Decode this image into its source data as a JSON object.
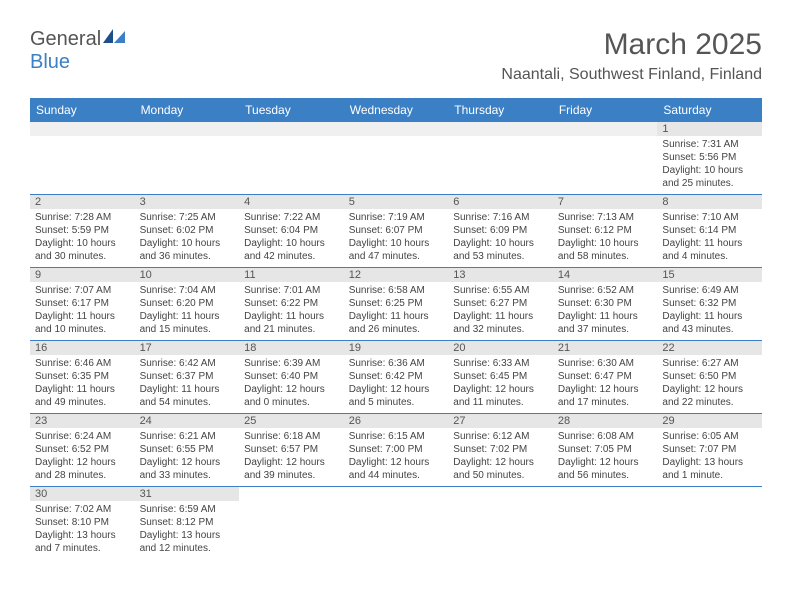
{
  "brand": {
    "name_pt1": "General",
    "name_pt2": "Blue"
  },
  "title": "March 2025",
  "location": "Naantali, Southwest Finland, Finland",
  "colors": {
    "header_bar": "#3b7fc4",
    "daynum_bg": "#e6e6e6",
    "empty_bg": "#f0f0f0",
    "text": "#444444",
    "title_text": "#555555",
    "row_border": "#3b7fc4",
    "white": "#ffffff"
  },
  "typography": {
    "body_pt": 10,
    "daynum_pt": 11,
    "header_pt": 12,
    "title_pt": 30,
    "location_pt": 16
  },
  "days": [
    "Sunday",
    "Monday",
    "Tuesday",
    "Wednesday",
    "Thursday",
    "Friday",
    "Saturday"
  ],
  "weeks": [
    [
      {
        "empty": true
      },
      {
        "empty": true
      },
      {
        "empty": true
      },
      {
        "empty": true
      },
      {
        "empty": true
      },
      {
        "empty": true
      },
      {
        "n": "1",
        "sr": "Sunrise: 7:31 AM",
        "ss": "Sunset: 5:56 PM",
        "dl": "Daylight: 10 hours and 25 minutes."
      }
    ],
    [
      {
        "n": "2",
        "sr": "Sunrise: 7:28 AM",
        "ss": "Sunset: 5:59 PM",
        "dl": "Daylight: 10 hours and 30 minutes."
      },
      {
        "n": "3",
        "sr": "Sunrise: 7:25 AM",
        "ss": "Sunset: 6:02 PM",
        "dl": "Daylight: 10 hours and 36 minutes."
      },
      {
        "n": "4",
        "sr": "Sunrise: 7:22 AM",
        "ss": "Sunset: 6:04 PM",
        "dl": "Daylight: 10 hours and 42 minutes."
      },
      {
        "n": "5",
        "sr": "Sunrise: 7:19 AM",
        "ss": "Sunset: 6:07 PM",
        "dl": "Daylight: 10 hours and 47 minutes."
      },
      {
        "n": "6",
        "sr": "Sunrise: 7:16 AM",
        "ss": "Sunset: 6:09 PM",
        "dl": "Daylight: 10 hours and 53 minutes."
      },
      {
        "n": "7",
        "sr": "Sunrise: 7:13 AM",
        "ss": "Sunset: 6:12 PM",
        "dl": "Daylight: 10 hours and 58 minutes."
      },
      {
        "n": "8",
        "sr": "Sunrise: 7:10 AM",
        "ss": "Sunset: 6:14 PM",
        "dl": "Daylight: 11 hours and 4 minutes."
      }
    ],
    [
      {
        "n": "9",
        "sr": "Sunrise: 7:07 AM",
        "ss": "Sunset: 6:17 PM",
        "dl": "Daylight: 11 hours and 10 minutes."
      },
      {
        "n": "10",
        "sr": "Sunrise: 7:04 AM",
        "ss": "Sunset: 6:20 PM",
        "dl": "Daylight: 11 hours and 15 minutes."
      },
      {
        "n": "11",
        "sr": "Sunrise: 7:01 AM",
        "ss": "Sunset: 6:22 PM",
        "dl": "Daylight: 11 hours and 21 minutes."
      },
      {
        "n": "12",
        "sr": "Sunrise: 6:58 AM",
        "ss": "Sunset: 6:25 PM",
        "dl": "Daylight: 11 hours and 26 minutes."
      },
      {
        "n": "13",
        "sr": "Sunrise: 6:55 AM",
        "ss": "Sunset: 6:27 PM",
        "dl": "Daylight: 11 hours and 32 minutes."
      },
      {
        "n": "14",
        "sr": "Sunrise: 6:52 AM",
        "ss": "Sunset: 6:30 PM",
        "dl": "Daylight: 11 hours and 37 minutes."
      },
      {
        "n": "15",
        "sr": "Sunrise: 6:49 AM",
        "ss": "Sunset: 6:32 PM",
        "dl": "Daylight: 11 hours and 43 minutes."
      }
    ],
    [
      {
        "n": "16",
        "sr": "Sunrise: 6:46 AM",
        "ss": "Sunset: 6:35 PM",
        "dl": "Daylight: 11 hours and 49 minutes."
      },
      {
        "n": "17",
        "sr": "Sunrise: 6:42 AM",
        "ss": "Sunset: 6:37 PM",
        "dl": "Daylight: 11 hours and 54 minutes."
      },
      {
        "n": "18",
        "sr": "Sunrise: 6:39 AM",
        "ss": "Sunset: 6:40 PM",
        "dl": "Daylight: 12 hours and 0 minutes."
      },
      {
        "n": "19",
        "sr": "Sunrise: 6:36 AM",
        "ss": "Sunset: 6:42 PM",
        "dl": "Daylight: 12 hours and 5 minutes."
      },
      {
        "n": "20",
        "sr": "Sunrise: 6:33 AM",
        "ss": "Sunset: 6:45 PM",
        "dl": "Daylight: 12 hours and 11 minutes."
      },
      {
        "n": "21",
        "sr": "Sunrise: 6:30 AM",
        "ss": "Sunset: 6:47 PM",
        "dl": "Daylight: 12 hours and 17 minutes."
      },
      {
        "n": "22",
        "sr": "Sunrise: 6:27 AM",
        "ss": "Sunset: 6:50 PM",
        "dl": "Daylight: 12 hours and 22 minutes."
      }
    ],
    [
      {
        "n": "23",
        "sr": "Sunrise: 6:24 AM",
        "ss": "Sunset: 6:52 PM",
        "dl": "Daylight: 12 hours and 28 minutes."
      },
      {
        "n": "24",
        "sr": "Sunrise: 6:21 AM",
        "ss": "Sunset: 6:55 PM",
        "dl": "Daylight: 12 hours and 33 minutes."
      },
      {
        "n": "25",
        "sr": "Sunrise: 6:18 AM",
        "ss": "Sunset: 6:57 PM",
        "dl": "Daylight: 12 hours and 39 minutes."
      },
      {
        "n": "26",
        "sr": "Sunrise: 6:15 AM",
        "ss": "Sunset: 7:00 PM",
        "dl": "Daylight: 12 hours and 44 minutes."
      },
      {
        "n": "27",
        "sr": "Sunrise: 6:12 AM",
        "ss": "Sunset: 7:02 PM",
        "dl": "Daylight: 12 hours and 50 minutes."
      },
      {
        "n": "28",
        "sr": "Sunrise: 6:08 AM",
        "ss": "Sunset: 7:05 PM",
        "dl": "Daylight: 12 hours and 56 minutes."
      },
      {
        "n": "29",
        "sr": "Sunrise: 6:05 AM",
        "ss": "Sunset: 7:07 PM",
        "dl": "Daylight: 13 hours and 1 minute."
      }
    ],
    [
      {
        "n": "30",
        "sr": "Sunrise: 7:02 AM",
        "ss": "Sunset: 8:10 PM",
        "dl": "Daylight: 13 hours and 7 minutes."
      },
      {
        "n": "31",
        "sr": "Sunrise: 6:59 AM",
        "ss": "Sunset: 8:12 PM",
        "dl": "Daylight: 13 hours and 12 minutes."
      },
      {
        "empty": true
      },
      {
        "empty": true
      },
      {
        "empty": true
      },
      {
        "empty": true
      },
      {
        "empty": true
      }
    ]
  ]
}
